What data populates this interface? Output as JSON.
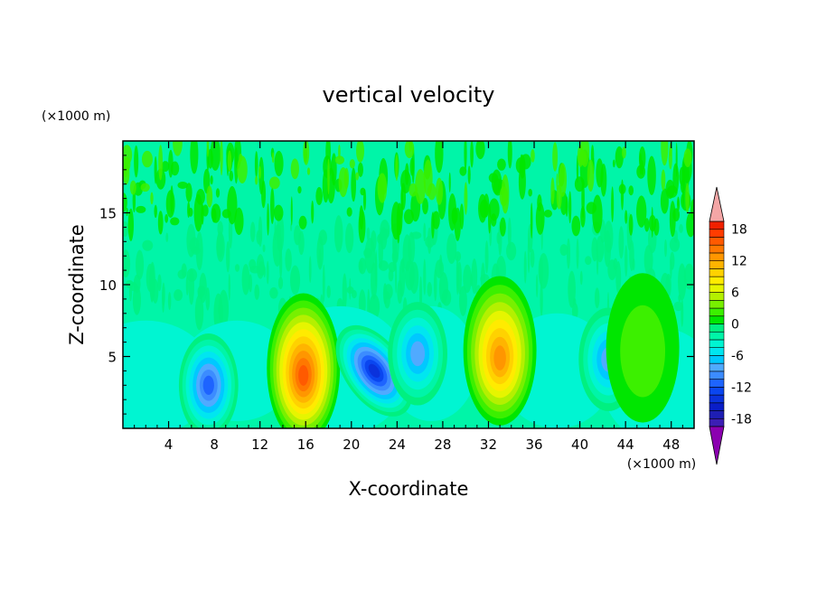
{
  "chart_data": {
    "type": "heatmap",
    "title": "vertical velocity",
    "xlabel": "X-coordinate",
    "ylabel": "Z-coordinate",
    "x_unit": "(×1000 m)",
    "y_unit": "(×1000 m)",
    "xlim": [
      0,
      50
    ],
    "ylim": [
      0,
      20
    ],
    "x_ticks": [
      4,
      8,
      12,
      16,
      20,
      24,
      28,
      32,
      36,
      40,
      44,
      48
    ],
    "y_ticks": [
      5,
      10,
      15
    ],
    "colorbar": {
      "levels": [
        -21,
        -19.5,
        -18,
        -16.5,
        -15,
        -13.5,
        -12,
        -10.5,
        -9,
        -7.5,
        -6,
        -4.5,
        -3,
        -1.5,
        0,
        1.5,
        3,
        4.5,
        6,
        7.5,
        9,
        10.5,
        12,
        13.5,
        15,
        16.5,
        18,
        19.5,
        21
      ],
      "tick_labels": [
        18,
        12,
        6,
        0,
        -6,
        -12,
        -18
      ],
      "low_color": "#8b00b0",
      "high_color": "#f4a6a6",
      "colors": [
        "#5a14b4",
        "#3c1eb4",
        "#1e1eb4",
        "#0a1ec8",
        "#0a32dc",
        "#0a46f0",
        "#1e64ff",
        "#3c8cff",
        "#50aaff",
        "#00c8ff",
        "#00e6f0",
        "#00f5d2",
        "#00f5a8",
        "#00f080",
        "#00e600",
        "#3cf000",
        "#78f000",
        "#b4f000",
        "#e6f500",
        "#ffeb00",
        "#ffd200",
        "#ffb400",
        "#ff9600",
        "#ff7800",
        "#ff5a00",
        "#ff3c00",
        "#f02000",
        "#dc0a00"
      ]
    },
    "features": [
      {
        "kind": "updraft",
        "x": 15.8,
        "z": 3.6,
        "peak": 16
      },
      {
        "kind": "updraft",
        "x": 33.0,
        "z": 4.8,
        "peak": 14
      },
      {
        "kind": "downdraft",
        "x": 22.0,
        "z": 4.0,
        "peak": -15
      },
      {
        "kind": "downdraft",
        "x": 7.5,
        "z": 3.0,
        "peak": -12
      },
      {
        "kind": "downdraft",
        "x": 25.8,
        "z": 5.2,
        "peak": -9
      },
      {
        "kind": "downdraft",
        "x": 42.5,
        "z": 4.8,
        "peak": -9
      },
      {
        "kind": "updraft",
        "x": 45.5,
        "z": 5.0,
        "peak": 3
      }
    ]
  }
}
